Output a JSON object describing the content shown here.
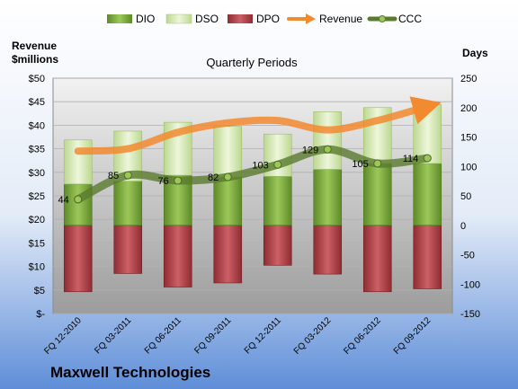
{
  "company": "Maxwell Technologies",
  "chart_data": {
    "type": "bar",
    "title": "Quarterly Periods",
    "left_axis_label": [
      "Revenue",
      "$millions"
    ],
    "right_axis_label": "Days",
    "categories": [
      "FQ 12-2010",
      "FQ 03-2011",
      "FQ 06-2011",
      "FQ 09-2011",
      "FQ 12-2011",
      "FQ 03-2012",
      "FQ 06-2012",
      "FQ 09-2012"
    ],
    "left_ticks": [
      "$-",
      "$5",
      "$10",
      "$15",
      "$20",
      "$25",
      "$30",
      "$35",
      "$40",
      "$45",
      "$50"
    ],
    "right_ticks": [
      "-150",
      "-100",
      "-50",
      "0",
      "50",
      "100",
      "150",
      "200",
      "250"
    ],
    "left_range": [
      0,
      50
    ],
    "right_range": [
      -150,
      250
    ],
    "grid": true,
    "legend_position": "top",
    "series": [
      {
        "name": "DIO",
        "axis": "right",
        "kind": "stacked-bar",
        "color": "#77A33A",
        "values": [
          70,
          75,
          85,
          82,
          83,
          95,
          105,
          105
        ]
      },
      {
        "name": "DSO",
        "axis": "right",
        "kind": "stacked-bar",
        "color": "#D6E8B0",
        "values": [
          75,
          85,
          90,
          86,
          72,
          98,
          95,
          100
        ]
      },
      {
        "name": "DPO",
        "axis": "right",
        "kind": "negative-bar",
        "color": "#B8474E",
        "values": [
          -113,
          -82,
          -105,
          -98,
          -68,
          -83,
          -113,
          -108
        ]
      },
      {
        "name": "Revenue",
        "axis": "left",
        "kind": "line",
        "color": "#F28A30",
        "values": [
          34.5,
          35.0,
          38.5,
          40.5,
          41.0,
          39.0,
          41.0,
          44.0
        ]
      },
      {
        "name": "CCC",
        "axis": "right",
        "kind": "line",
        "color": "#5A7A2E",
        "values": [
          44,
          85,
          76,
          82,
          103,
          129,
          105,
          114
        ]
      }
    ],
    "data_labels": [
      "44",
      "85",
      "76",
      "82",
      "103",
      "129",
      "105",
      "114"
    ]
  }
}
